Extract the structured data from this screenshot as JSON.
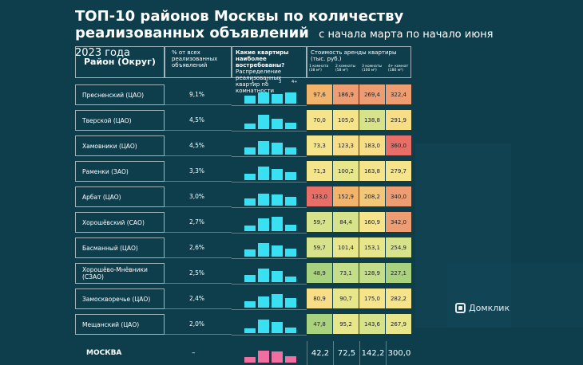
{
  "title": {
    "main": "ТОП-10 районов Москвы по количеству реализованных объявлений",
    "sub": "с начала марта по начало июня 2023 года"
  },
  "headers": {
    "district": "Район (Округ)",
    "share": "% от всех реализованных объявлений",
    "which_title": "Какие квартиры наиболее востребованы?",
    "which_sub": "Распределение реализованных квартир по комнатности",
    "rent": "Стоимость аренды квартиры (тыс. руб.)",
    "rent_cols": [
      "1 комната (38 м²)",
      "2 комнаты (58 м²)",
      "3 комнаты (100 м²)",
      "4+ комнат (180 м²)"
    ],
    "room_nums": [
      "1",
      "2",
      "3",
      "4+"
    ]
  },
  "chart_data": {
    "type": "table",
    "rows": [
      {
        "district": "Пресненский (ЦАО)",
        "share": "9,1%",
        "dist": [
          0.55,
          0.8,
          0.65,
          0.75
        ],
        "rent": [
          "97,6",
          "186,9",
          "269,4",
          "322,4"
        ],
        "colors": [
          "#f2b36a",
          "#ee9c72",
          "#ee9c72",
          "#ee9c72"
        ]
      },
      {
        "district": "Тверской (ЦАО)",
        "share": "4,5%",
        "dist": [
          0.4,
          1.0,
          0.7,
          0.45
        ],
        "rent": [
          "70,0",
          "105,0",
          "138,8",
          "291,9"
        ],
        "colors": [
          "#f5e48a",
          "#f5e48a",
          "#d6e38b",
          "#f7dd86"
        ]
      },
      {
        "district": "Хамовники (ЦАО)",
        "share": "4,5%",
        "dist": [
          0.5,
          0.95,
          0.85,
          0.5
        ],
        "rent": [
          "73,3",
          "123,3",
          "183,0",
          "360,0"
        ],
        "colors": [
          "#f5e48a",
          "#f7dd86",
          "#f7dd86",
          "#e86e68"
        ]
      },
      {
        "district": "Раменки (ЗАО)",
        "share": "3,3%",
        "dist": [
          0.45,
          0.95,
          0.75,
          0.55
        ],
        "rent": [
          "71,3",
          "100,2",
          "163,8",
          "279,7"
        ],
        "colors": [
          "#f5e48a",
          "#e8e68b",
          "#f5e48a",
          "#f5e48a"
        ]
      },
      {
        "district": "Арбат (ЦАО)",
        "share": "3,0%",
        "dist": [
          0.5,
          0.85,
          0.75,
          0.6
        ],
        "rent": [
          "133,0",
          "152,9",
          "208,2",
          "340,0"
        ],
        "colors": [
          "#e86e68",
          "#f2b36a",
          "#f2c878",
          "#ee9c72"
        ]
      },
      {
        "district": "Хорошёвский (САО)",
        "share": "2,7%",
        "dist": [
          0.4,
          0.9,
          1.0,
          0.45
        ],
        "rent": [
          "59,7",
          "84,4",
          "160,9",
          "342,0"
        ],
        "colors": [
          "#d6e38b",
          "#d6e38b",
          "#f5e48a",
          "#ee9c72"
        ]
      },
      {
        "district": "Басманный (ЦАО)",
        "share": "2,6%",
        "dist": [
          0.5,
          0.95,
          0.8,
          0.55
        ],
        "rent": [
          "59,7",
          "101,4",
          "153,1",
          "254,9"
        ],
        "colors": [
          "#d6e38b",
          "#e8e68b",
          "#e8e68b",
          "#d6e38b"
        ]
      },
      {
        "district": "Хорошёво-Мнёвники (СЗАО)",
        "share": "2,5%",
        "dist": [
          0.5,
          0.95,
          0.75,
          0.4
        ],
        "rent": [
          "48,9",
          "73,1",
          "128,9",
          "227,1"
        ],
        "colors": [
          "#a9d27f",
          "#c4dd88",
          "#c4dd88",
          "#a9d27f"
        ]
      },
      {
        "district": "Замоскворечье (ЦАО)",
        "share": "2,4%",
        "dist": [
          0.45,
          0.8,
          0.95,
          0.65
        ],
        "rent": [
          "80,9",
          "90,7",
          "175,0",
          "282,2"
        ],
        "colors": [
          "#f7dd86",
          "#e8e68b",
          "#f5e48a",
          "#f5e48a"
        ]
      },
      {
        "district": "Мещанский (ЦАО)",
        "share": "2,0%",
        "dist": [
          0.35,
          0.95,
          0.8,
          0.4
        ],
        "rent": [
          "47,8",
          "95,2",
          "143,6",
          "267,9"
        ],
        "colors": [
          "#a9d27f",
          "#e8e68b",
          "#d6e38b",
          "#e8e68b"
        ]
      }
    ],
    "total": {
      "district": "МОСКВА",
      "share": "–",
      "dist": [
        0.4,
        0.85,
        0.75,
        0.45
      ],
      "rent": [
        "42,2",
        "72,5",
        "142,2",
        "300,0"
      ]
    }
  },
  "logo": "Домклик",
  "colors": {
    "background": "#0e3d4c",
    "bars": "#39e0f2",
    "total_bars": "#f06ea0"
  }
}
